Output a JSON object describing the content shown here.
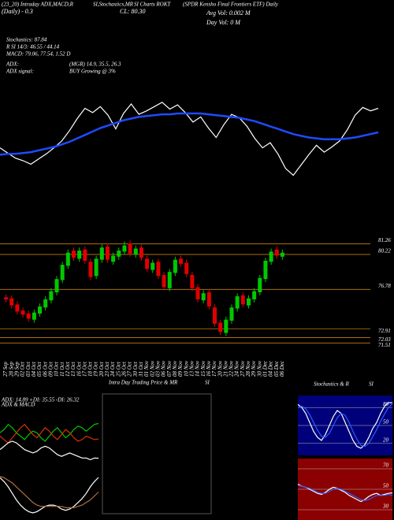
{
  "header": {
    "line1": "(23_20) Intraday ADX,MACD,R",
    "line1b": "SI,Stochastics,MR",
    "line1c": "SI Charts ROKT",
    "line1d": "(SPDR Kensho Final Frontiers ETF) Daily",
    "line2": "(Daily) - 0.3",
    "close": "CL: 80.30",
    "avgvol": "Avg Vol: 0.002  M",
    "dayvol": "Day Vol: 0   M",
    "stoch": "Stochastics: 87.84",
    "rsi": "R      SI 14/3: 46.55 / 44.14",
    "macd": "MACD: 79.06, 77.54, 1.52   D",
    "adx": "ADX:",
    "adxvals": "(MGR) 14.9, 35.5, 26.3",
    "signal": "ADX   signal:",
    "signalval": "BUY Growing @ 3%"
  },
  "chart_data": [
    {
      "type": "line",
      "ylim": [
        71,
        82
      ],
      "series": [
        {
          "color": "#ffffff",
          "values": [
            75.8,
            75.2,
            74.6,
            74.3,
            73.9,
            74.5,
            75.1,
            75.8,
            76.6,
            77.8,
            79.2,
            80.4,
            79.9,
            80.6,
            79.6,
            78.0,
            79.8,
            80.9,
            79.7,
            80.1,
            80.6,
            81.1,
            80.3,
            80.8,
            79.9,
            78.8,
            79.4,
            78.1,
            77.0,
            78.5,
            79.7,
            79.3,
            78.3,
            76.9,
            75.8,
            76.4,
            75.1,
            73.4,
            72.6,
            73.8,
            75.0,
            76.1,
            75.3,
            75.9,
            76.6,
            77.9,
            79.6,
            80.5,
            80.1,
            80.4
          ]
        },
        {
          "color": "#1e4bff",
          "values": [
            75.0,
            75.1,
            75.1,
            75.2,
            75.3,
            75.5,
            75.7,
            75.9,
            76.2,
            76.5,
            76.9,
            77.3,
            77.7,
            78.1,
            78.4,
            78.7,
            79.0,
            79.2,
            79.4,
            79.5,
            79.6,
            79.7,
            79.7,
            79.8,
            79.8,
            79.8,
            79.8,
            79.7,
            79.6,
            79.5,
            79.4,
            79.3,
            79.1,
            78.9,
            78.6,
            78.3,
            78.0,
            77.7,
            77.4,
            77.2,
            77.0,
            76.9,
            76.8,
            76.8,
            76.8,
            76.9,
            77.0,
            77.2,
            77.4,
            77.6
          ]
        }
      ]
    },
    {
      "type": "candlestick",
      "ylim": [
        71.3,
        82
      ],
      "yticks": [
        81.26,
        80.22,
        76.78,
        72.91,
        72.03,
        71.51
      ],
      "up_color": "#00c800",
      "down_color": "#e00000",
      "tick_color": "#c87f0a",
      "categories": [
        "27 Sep",
        "28 Sep",
        "29 Sep",
        "02 Oct",
        "03 Oct",
        "04 Oct",
        "05 Oct",
        "06 Oct",
        "09 Oct",
        "10 Oct",
        "11 Oct",
        "12 Oct",
        "13 Oct",
        "16 Oct",
        "17 Oct",
        "18 Oct",
        "19 Oct",
        "20 Oct",
        "23 Oct",
        "24 Oct",
        "25 Oct",
        "26 Oct",
        "27 Oct",
        "30 Oct",
        "31 Oct",
        "01 Nov",
        "02 Nov",
        "03 Nov",
        "06 Nov",
        "07 Nov",
        "08 Nov",
        "09 Nov",
        "10 Nov",
        "13 Nov",
        "14 Nov",
        "15 Nov",
        "16 Nov",
        "17 Nov",
        "20 Nov",
        "21 Nov",
        "22 Nov",
        "24 Nov",
        "27 Nov",
        "28 Nov",
        "29 Nov",
        "30 Nov",
        "01 Dec",
        "04 Dec",
        "05 Dec",
        "06 Dec"
      ],
      "open": [
        76.0,
        75.9,
        75.3,
        74.7,
        74.4,
        73.8,
        74.4,
        75.0,
        75.7,
        76.5,
        77.7,
        79.1,
        80.6,
        79.8,
        80.7,
        79.5,
        78.1,
        79.7,
        81.0,
        79.5,
        80.0,
        80.5,
        81.3,
        80.2,
        80.9,
        79.8,
        78.7,
        79.5,
        78.2,
        76.9,
        78.4,
        79.8,
        79.4,
        78.2,
        77.0,
        75.7,
        76.5,
        75.0,
        73.5,
        72.5,
        73.7,
        74.9,
        76.2,
        75.2,
        75.8,
        76.5,
        77.8,
        79.5,
        80.7,
        80.0
      ],
      "high": [
        76.3,
        76.2,
        75.6,
        75.0,
        74.7,
        74.8,
        75.4,
        76.1,
        76.9,
        78.1,
        79.5,
        80.7,
        80.9,
        80.9,
        81.0,
        79.8,
        80.1,
        81.2,
        81.3,
        80.4,
        80.9,
        81.5,
        81.6,
        81.1,
        81.2,
        80.1,
        79.7,
        79.8,
        78.5,
        78.8,
        80.0,
        80.1,
        79.7,
        78.5,
        77.3,
        76.7,
        76.8,
        75.3,
        73.8,
        74.1,
        75.3,
        76.4,
        76.5,
        76.2,
        76.9,
        78.2,
        79.9,
        80.8,
        81.0,
        80.7
      ],
      "low": [
        75.5,
        74.9,
        74.3,
        74.0,
        73.6,
        73.5,
        74.1,
        74.7,
        75.4,
        76.2,
        77.4,
        78.8,
        79.6,
        79.5,
        79.3,
        77.7,
        77.8,
        79.4,
        79.4,
        79.2,
        79.7,
        80.2,
        80.0,
        79.9,
        79.6,
        78.5,
        78.4,
        77.8,
        76.7,
        76.6,
        78.1,
        79.0,
        78.0,
        76.6,
        75.5,
        75.4,
        74.8,
        73.1,
        72.3,
        72.2,
        73.4,
        74.6,
        75.0,
        74.9,
        75.5,
        76.2,
        77.5,
        79.2,
        79.8,
        79.7
      ],
      "close": [
        75.8,
        75.2,
        74.6,
        74.3,
        73.9,
        74.5,
        75.1,
        75.8,
        76.6,
        77.8,
        79.2,
        80.4,
        79.9,
        80.6,
        79.6,
        78.0,
        79.8,
        80.9,
        79.7,
        80.1,
        80.6,
        81.1,
        80.3,
        80.8,
        79.9,
        78.8,
        79.4,
        78.1,
        77.0,
        78.5,
        79.7,
        79.3,
        78.3,
        76.9,
        75.8,
        76.4,
        75.1,
        73.4,
        72.6,
        73.8,
        75.0,
        76.1,
        75.3,
        75.9,
        76.6,
        77.9,
        79.6,
        80.5,
        80.1,
        80.4
      ]
    },
    {
      "type": "line",
      "title": "ADX  & MACD",
      "subtitle": "ADX: 14.89  +DI: 35.55  -DI: 26.32",
      "ylim": [
        10,
        40
      ],
      "series": [
        {
          "color": "#00c800",
          "values": [
            30,
            32,
            35,
            33,
            30,
            28,
            26,
            29,
            31,
            30,
            27,
            25,
            28,
            31,
            33,
            30,
            27,
            29,
            32,
            34,
            33,
            31,
            33,
            35,
            35.55
          ]
        },
        {
          "color": "#e03000",
          "values": [
            28,
            26,
            24,
            27,
            30,
            33,
            35,
            32,
            29,
            27,
            30,
            33,
            31,
            28,
            26,
            29,
            32,
            30,
            27,
            25,
            26,
            28,
            27,
            26,
            26.32
          ]
        },
        {
          "color": "#ffffff",
          "values": [
            20,
            22,
            24,
            25,
            24,
            22,
            20,
            19,
            18,
            19,
            21,
            22,
            21,
            19,
            17,
            16,
            17,
            18,
            17,
            16,
            15,
            15,
            14,
            15,
            14.89
          ]
        }
      ]
    },
    {
      "type": "line",
      "ylim": [
        -1.5,
        2
      ],
      "series": [
        {
          "color": "#ffffff",
          "values": [
            1.5,
            1.2,
            0.8,
            0.3,
            -0.2,
            -0.6,
            -0.9,
            -1.1,
            -1.2,
            -1.1,
            -0.9,
            -0.7,
            -0.6,
            -0.6,
            -0.7,
            -0.9,
            -1.0,
            -0.9,
            -0.7,
            -0.4,
            -0.1,
            0.3,
            0.8,
            1.2,
            1.52
          ]
        },
        {
          "color": "#b07040",
          "values": [
            1.6,
            1.5,
            1.3,
            1.1,
            0.8,
            0.5,
            0.2,
            -0.1,
            -0.4,
            -0.6,
            -0.7,
            -0.7,
            -0.7,
            -0.7,
            -0.7,
            -0.7,
            -0.8,
            -0.8,
            -0.8,
            -0.7,
            -0.6,
            -0.4,
            -0.2,
            0.1,
            0.4
          ]
        }
      ]
    },
    {
      "type": "panel",
      "title": "Intra Day Trading Price  & MR",
      "title2": "SI"
    },
    {
      "type": "line",
      "title": "Stochastics & R",
      "title2": "SI",
      "background": "#00007a",
      "ylim": [
        0,
        100
      ],
      "yticks": [
        20,
        50,
        80
      ],
      "series": [
        {
          "color": "#ffffff",
          "values": [
            85,
            80,
            70,
            55,
            40,
            30,
            25,
            35,
            50,
            65,
            75,
            70,
            55,
            40,
            25,
            15,
            12,
            18,
            30,
            45,
            55,
            70,
            82,
            88,
            87.84
          ]
        },
        {
          "color": "#2a5cff",
          "values": [
            80,
            82,
            78,
            68,
            55,
            42,
            32,
            30,
            37,
            50,
            63,
            70,
            67,
            55,
            40,
            27,
            17,
            15,
            20,
            31,
            43,
            57,
            69,
            80,
            86
          ]
        }
      ]
    },
    {
      "type": "line",
      "background": "#8b0000",
      "ylim": [
        20,
        80
      ],
      "yticks": [
        30,
        50,
        70
      ],
      "series": [
        {
          "color": "#ffffff",
          "values": [
            55,
            53,
            52,
            50,
            48,
            46,
            45,
            47,
            50,
            52,
            51,
            49,
            47,
            44,
            42,
            40,
            38,
            40,
            43,
            45,
            46,
            44,
            45,
            46,
            46.55
          ]
        },
        {
          "color": "#2a5cff",
          "values": [
            54,
            53,
            52,
            51,
            49,
            47,
            46,
            46,
            48,
            50,
            51,
            50,
            48,
            46,
            44,
            42,
            40,
            39,
            40,
            42,
            44,
            44,
            44,
            45,
            44.14
          ]
        }
      ]
    }
  ]
}
